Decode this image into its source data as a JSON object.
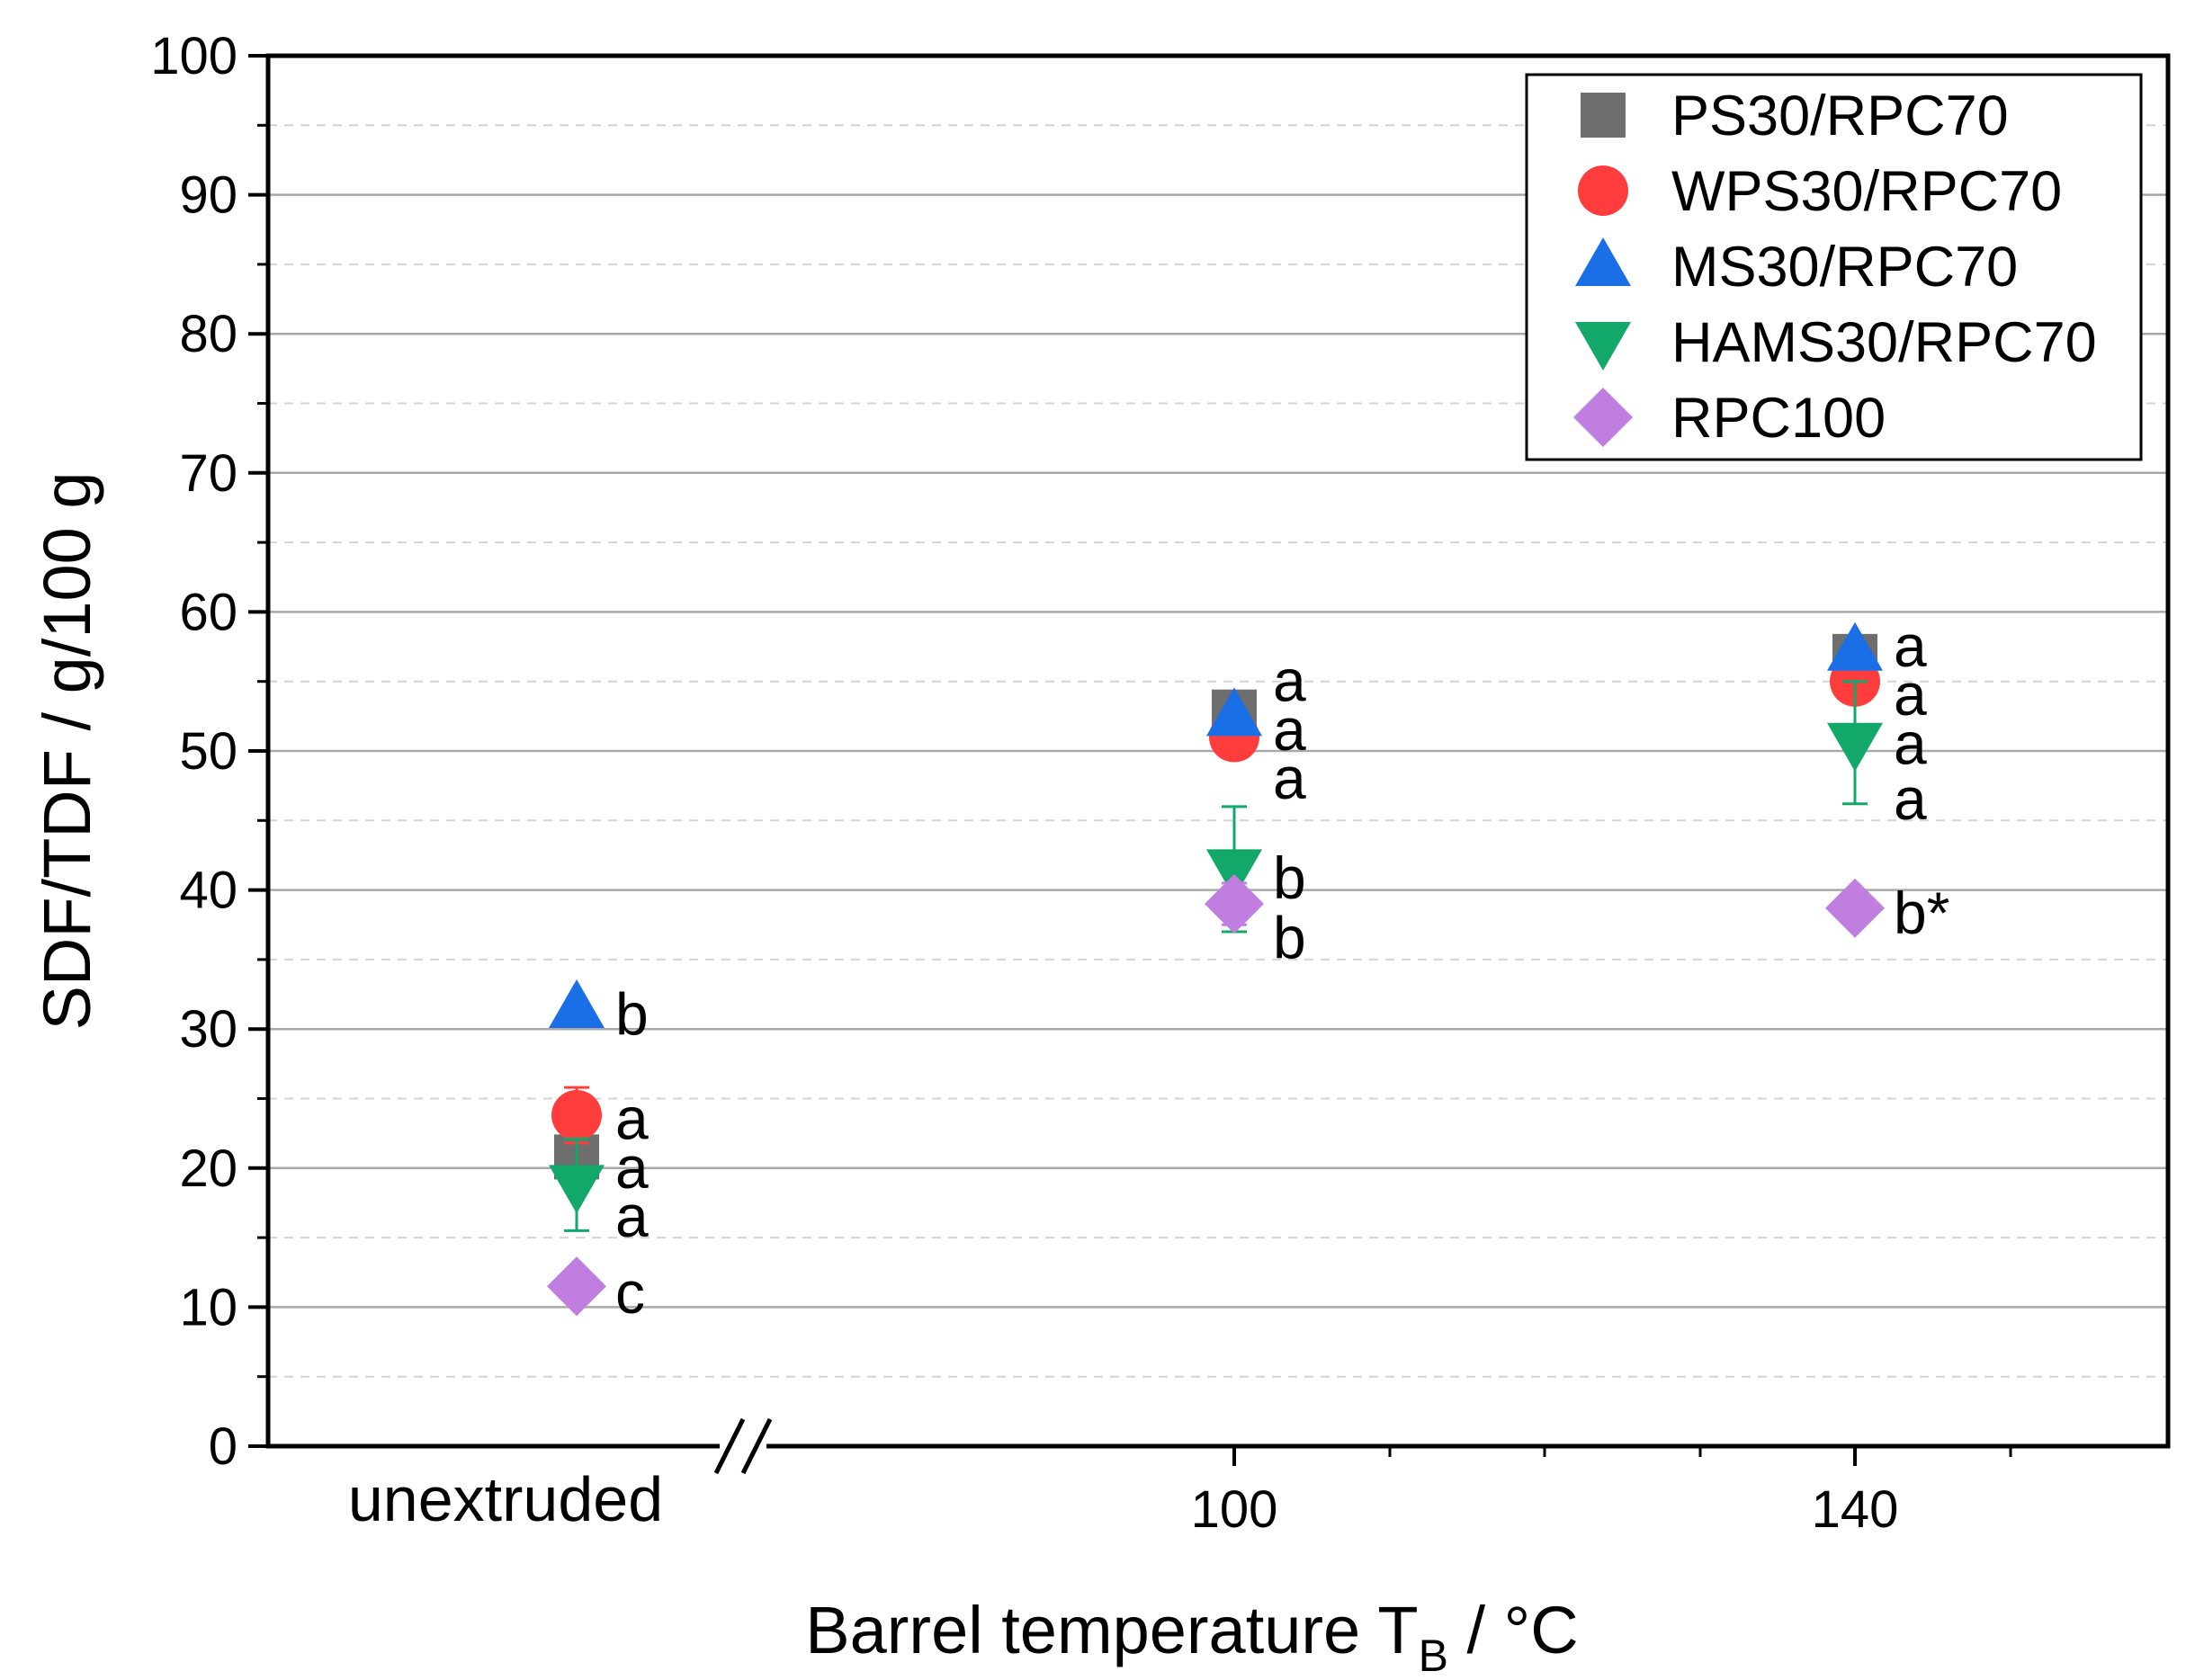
{
  "chart_data": {
    "type": "scatter",
    "title": "",
    "xlabel": "Barrel temperature T",
    "xlabel_subscript": "B",
    "xlabel_unit": " / °C",
    "ylabel": "SDF/TDF / g/100 g",
    "ylim": [
      0,
      100
    ],
    "y_ticks": [
      "0",
      "10",
      "20",
      "30",
      "40",
      "50",
      "60",
      "70",
      "80",
      "90",
      "100"
    ],
    "y_minor_step": 5,
    "grid": true,
    "legend_position": "top-right",
    "categories": [
      "unextruded",
      "100",
      "140"
    ],
    "axis_break": "//",
    "series": [
      {
        "name": "PS30/RPC70",
        "marker": "square",
        "color": "#6e6e6e",
        "values": [
          20.8,
          52.8,
          56.8
        ],
        "errors": [
          null,
          null,
          null
        ],
        "letters": [
          null,
          null,
          null
        ]
      },
      {
        "name": "WPS30/RPC70",
        "marker": "circle",
        "color": "#ff3d3d",
        "values": [
          23.8,
          51.0,
          55.0
        ],
        "errors": [
          2.0,
          null,
          1.4
        ],
        "letters": [
          null,
          null,
          null
        ]
      },
      {
        "name": "MS30/RPC70",
        "marker": "triangle-up",
        "color": "#1a6fe6",
        "values": [
          31.5,
          52.5,
          57.2
        ],
        "errors": [
          null,
          null,
          null
        ],
        "letters": [
          null,
          null,
          null
        ]
      },
      {
        "name": "HAMS30/RPC70",
        "marker": "triangle-down",
        "color": "#12a86a",
        "values": [
          18.8,
          41.5,
          50.6
        ],
        "errors": [
          3.3,
          4.5,
          4.4
        ],
        "letters": [
          null,
          null,
          null
        ]
      },
      {
        "name": "RPC100",
        "marker": "diamond",
        "color": "#c07ee0",
        "values": [
          11.5,
          39.0,
          38.7
        ],
        "errors": [
          null,
          1.5,
          null
        ],
        "letters": [
          null,
          null,
          null
        ]
      }
    ],
    "annotations": [
      {
        "category": "unextruded",
        "y": 31.0,
        "text": "b"
      },
      {
        "category": "unextruded",
        "y": 23.5,
        "text": "a"
      },
      {
        "category": "unextruded",
        "y": 20.0,
        "text": "a"
      },
      {
        "category": "unextruded",
        "y": 16.5,
        "text": "a"
      },
      {
        "category": "unextruded",
        "y": 11.0,
        "text": "c"
      },
      {
        "category": "100",
        "y": 55.0,
        "text": "a"
      },
      {
        "category": "100",
        "y": 51.5,
        "text": "a"
      },
      {
        "category": "100",
        "y": 48.0,
        "text": "a"
      },
      {
        "category": "100",
        "y": 40.8,
        "text": "b"
      },
      {
        "category": "100",
        "y": 36.5,
        "text": "b"
      },
      {
        "category": "140",
        "y": 57.5,
        "text": "a"
      },
      {
        "category": "140",
        "y": 54.0,
        "text": "a"
      },
      {
        "category": "140",
        "y": 50.5,
        "text": "a"
      },
      {
        "category": "140",
        "y": 46.5,
        "text": "a"
      },
      {
        "category": "140",
        "y": 38.3,
        "text": "b*"
      }
    ]
  }
}
